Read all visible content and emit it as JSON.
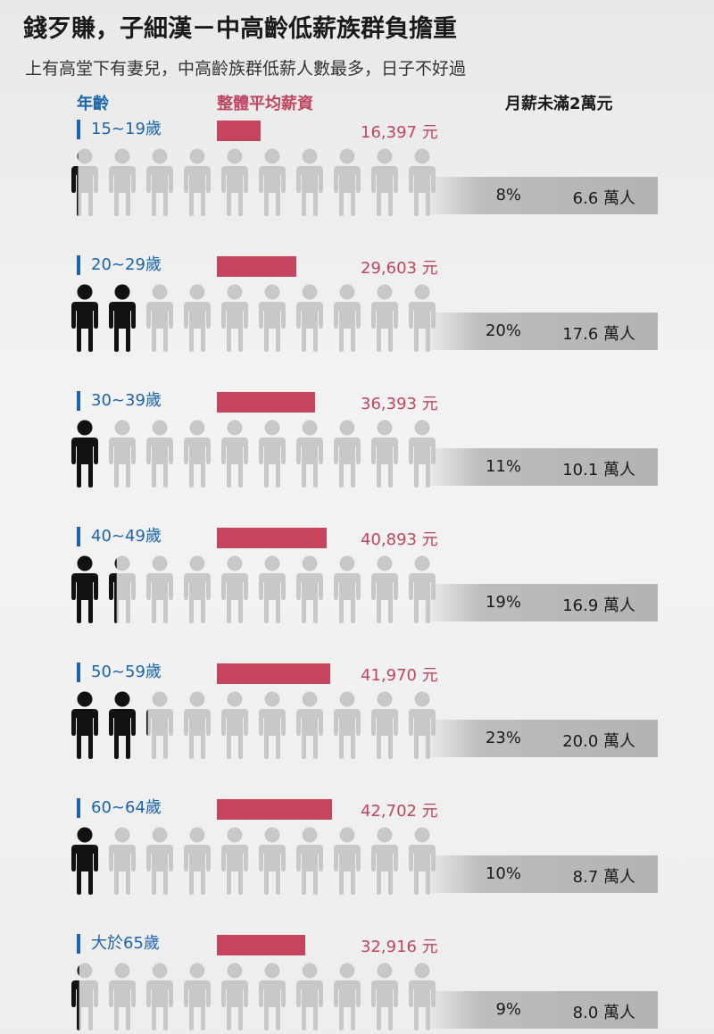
{
  "title": "錢歹賺，子細漢－中高齡低薪族群負擔重",
  "subtitle": "上有高堂下有妻兒，中高齡族群低薪人數最多，日子不好過",
  "headers": {
    "age": "年齡",
    "salary": "整體平均薪資",
    "low_wage": "月薪未滿2萬元"
  },
  "colors": {
    "age_blue": "#1c63b0",
    "salary_red": "#c7445f",
    "person_dark": "#111111",
    "person_gray": "#c8c8c8"
  },
  "chart_data": {
    "type": "bar",
    "title": "錢歹賺，子細漢－中高齡低薪族群負擔重",
    "subtitle": "上有高堂下有妻兒，中高齡族群低薪人數最多，日子不好過",
    "xlabel": "",
    "ylabel": "",
    "categories": [
      "15~19歲",
      "20~29歲",
      "30~39歲",
      "40~49歲",
      "50~59歲",
      "60~64歲",
      "大於65歲"
    ],
    "series": [
      {
        "name": "整體平均薪資",
        "values": [
          16397,
          29603,
          36393,
          40893,
          41970,
          42702,
          32916
        ],
        "labels": [
          "16,397 元",
          "29,603 元",
          "36,393 元",
          "40,893 元",
          "41,970 元",
          "42,702 元",
          "32,916 元"
        ]
      },
      {
        "name": "月薪未滿2萬元",
        "values": [
          8,
          20,
          11,
          19,
          23,
          10,
          9
        ],
        "labels": [
          "8%",
          "20%",
          "11%",
          "19%",
          "23%",
          "10%",
          "9%"
        ]
      }
    ],
    "low_wage_counts": [
      "6.6 萬人",
      "17.6 萬人",
      "10.1 萬人",
      "16.9 萬人",
      "20.0 萬人",
      "8.7 萬人",
      "8.0 萬人"
    ],
    "pictogram_total": 10,
    "ylim": [
      0,
      50000
    ]
  }
}
